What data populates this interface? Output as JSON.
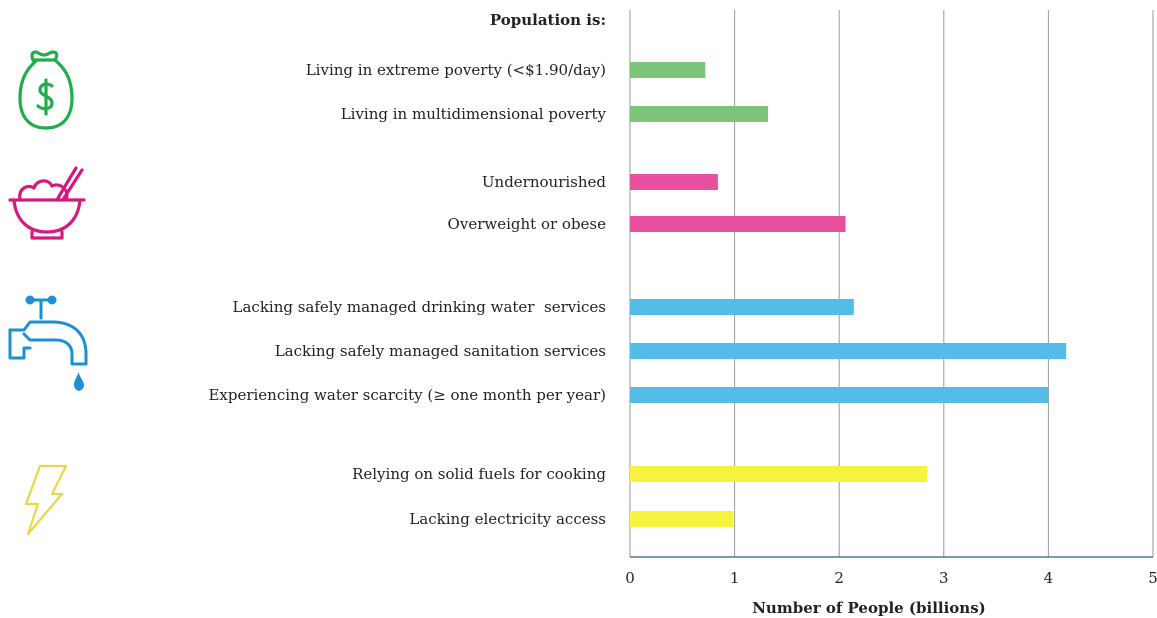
{
  "chart_data": {
    "type": "bar",
    "orientation": "horizontal",
    "header": "Population is:",
    "xlabel": "Number of People (billions)",
    "ylabel": "",
    "xlim": [
      0,
      5
    ],
    "x_ticks": [
      "0",
      "1",
      "2",
      "3",
      "4",
      "5"
    ],
    "grid": "vertical",
    "groups": [
      {
        "icon": "money-bag-icon",
        "color": "#7dc47a",
        "items": [
          {
            "label": "Living in extreme poverty (<$1.90/day)",
            "value": 0.72
          },
          {
            "label": "Living in multidimensional poverty",
            "value": 1.32
          }
        ]
      },
      {
        "icon": "food-bowl-icon",
        "color": "#e94f9f",
        "items": [
          {
            "label": "Undernourished",
            "value": 0.84
          },
          {
            "label": "Overweight or obese",
            "value": 2.06
          }
        ]
      },
      {
        "icon": "water-tap-icon",
        "color": "#53bde8",
        "items": [
          {
            "label": "Lacking safely managed drinking water  services",
            "value": 2.14
          },
          {
            "label": "Lacking safely managed sanitation services",
            "value": 4.17
          },
          {
            "label": "Experiencing water scarcity (≥ one month per year)",
            "value": 4.0
          }
        ]
      },
      {
        "icon": "lightning-bolt-icon",
        "color": "#f6f340",
        "items": [
          {
            "label": "Relying on solid fuels for cooking",
            "value": 2.84
          },
          {
            "label": "Lacking electricity access",
            "value": 0.99
          }
        ]
      }
    ]
  },
  "icons": {
    "group_icon_colors": [
      "#1fae4b",
      "#d6197e",
      "#1d8fd6",
      "#e9d64a"
    ]
  }
}
